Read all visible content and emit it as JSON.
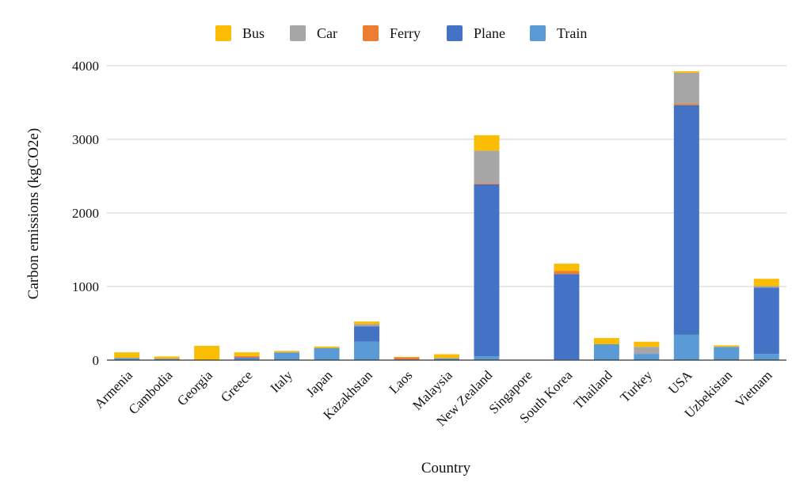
{
  "chart_data": {
    "type": "bar",
    "stacked": true,
    "xlabel": "Country",
    "ylabel": "Carbon emissions (kgCO2e)",
    "ylim": [
      0,
      4000
    ],
    "yticks": [
      0,
      1000,
      2000,
      3000,
      4000
    ],
    "grid": true,
    "legend_position": "top",
    "categories": [
      "Armenia",
      "Cambodia",
      "Georgia",
      "Greece",
      "Italy",
      "Japan",
      "Kazakhstan",
      "Laos",
      "Malaysia",
      "New Zealand",
      "Singapore",
      "South Korea",
      "Thailand",
      "Turkey",
      "USA",
      "Uzbekistan",
      "Vietnam"
    ],
    "stack_order": [
      "Train",
      "Plane",
      "Ferry",
      "Car",
      "Bus"
    ],
    "series": [
      {
        "name": "Bus",
        "color": "#FBBC04",
        "values": [
          75,
          30,
          195,
          50,
          20,
          20,
          35,
          5,
          55,
          210,
          0,
          100,
          85,
          70,
          20,
          20,
          100
        ]
      },
      {
        "name": "Car",
        "color": "#A6A6A6",
        "values": [
          0,
          0,
          0,
          0,
          0,
          0,
          30,
          0,
          0,
          440,
          0,
          0,
          0,
          95,
          420,
          0,
          20
        ]
      },
      {
        "name": "Ferry",
        "color": "#ED7D31",
        "values": [
          0,
          0,
          0,
          20,
          0,
          0,
          0,
          30,
          0,
          15,
          0,
          40,
          0,
          0,
          20,
          0,
          0
        ]
      },
      {
        "name": "Plane",
        "color": "#4472C4",
        "values": [
          0,
          0,
          0,
          15,
          5,
          0,
          210,
          0,
          0,
          2340,
          0,
          1160,
          0,
          0,
          3120,
          0,
          900
        ]
      },
      {
        "name": "Train",
        "color": "#5B9BD5",
        "values": [
          30,
          20,
          0,
          20,
          100,
          165,
          250,
          10,
          25,
          50,
          5,
          10,
          215,
          85,
          345,
          180,
          85
        ]
      }
    ]
  }
}
